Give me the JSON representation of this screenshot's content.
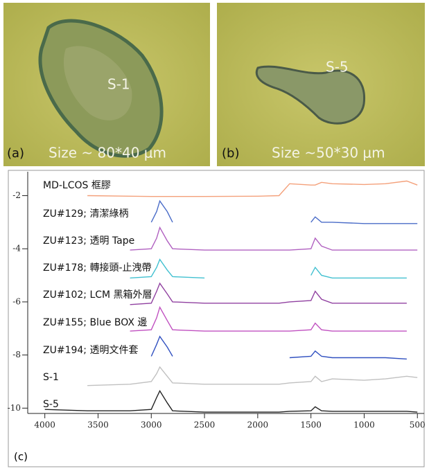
{
  "panels": {
    "a": {
      "tag": "(a)",
      "sample": "S-1",
      "size": "Size ~ 80*40 μm"
    },
    "b": {
      "tag": "(b)",
      "sample": "S-5",
      "size": "Size ~50*30 μm"
    },
    "c": {
      "tag": "(c)"
    }
  },
  "chart_data": {
    "type": "line",
    "x": [
      4000,
      3600,
      3200,
      3000,
      2950,
      2920,
      2850,
      2800,
      2500,
      2000,
      1800,
      1700,
      1500,
      1460,
      1400,
      1300,
      1000,
      800,
      600,
      500
    ],
    "xlim": [
      4050,
      430
    ],
    "xticks": [
      4000,
      3500,
      3000,
      2500,
      2000,
      1500,
      1000,
      500
    ],
    "ylim": [
      -10.2,
      -1.1
    ],
    "yticks": [
      -2,
      -4,
      -6,
      -8,
      -10
    ],
    "series": [
      {
        "name": "MD-LCOS 框膠",
        "color": "#f4a07a",
        "values": [
          null,
          -2.0,
          -2.02,
          -2.03,
          -2.03,
          -2.03,
          -2.03,
          -2.03,
          -2.03,
          -2.02,
          -2.0,
          -1.55,
          -1.6,
          -1.6,
          -1.5,
          -1.55,
          -1.58,
          -1.55,
          -1.45,
          -1.6
        ]
      },
      {
        "name": "ZU#129; 清潔綠柄",
        "color": "#4a6cc8",
        "values": [
          null,
          null,
          null,
          -3.0,
          -2.6,
          -2.2,
          -2.6,
          -3.0,
          null,
          null,
          null,
          null,
          -3.0,
          -2.8,
          -3.0,
          -3.0,
          -3.05,
          -3.05,
          -3.05,
          -3.05
        ]
      },
      {
        "name": "ZU#123; 透明 Tape",
        "color": "#b060c0",
        "values": [
          null,
          null,
          -4.05,
          -4.0,
          -3.6,
          -3.2,
          -3.7,
          -4.0,
          -4.05,
          -4.05,
          -4.05,
          -4.05,
          -4.0,
          -3.6,
          -3.9,
          -4.05,
          -4.05,
          -4.05,
          -4.05,
          -4.05
        ]
      },
      {
        "name": "ZU#178; 轉接頭-止洩帶",
        "color": "#40c0d0",
        "values": [
          null,
          null,
          -5.1,
          -5.05,
          -4.7,
          -4.4,
          -4.8,
          -5.05,
          -5.1,
          null,
          null,
          null,
          -5.0,
          -4.7,
          -5.0,
          -5.1,
          -5.1,
          -5.1,
          -5.1,
          null
        ]
      },
      {
        "name": "ZU#102; LCM 黑箱外層",
        "color": "#9040a0",
        "values": [
          null,
          null,
          -6.1,
          -6.05,
          -5.6,
          -5.3,
          -5.7,
          -6.0,
          -6.05,
          -6.05,
          -6.05,
          -6.0,
          -5.95,
          -5.6,
          -5.9,
          -6.05,
          -6.05,
          -6.05,
          -6.05,
          null
        ]
      },
      {
        "name": "ZU#155; Blue BOX 邊",
        "color": "#c050c0",
        "values": [
          null,
          null,
          -7.1,
          -7.05,
          -6.6,
          -6.2,
          -6.7,
          -7.05,
          -7.1,
          -7.1,
          -7.1,
          -7.1,
          -7.05,
          -6.8,
          -7.05,
          -7.1,
          -7.1,
          -7.1,
          -7.1,
          null
        ]
      },
      {
        "name": "ZU#194; 透明文件套",
        "color": "#3050c0",
        "values": [
          null,
          null,
          null,
          -8.05,
          -7.6,
          -7.3,
          -7.7,
          -8.05,
          null,
          null,
          null,
          -8.1,
          -8.05,
          -7.85,
          -8.05,
          -8.1,
          -8.1,
          -8.1,
          -8.15,
          null
        ]
      },
      {
        "name": "S-1",
        "color": "#c0c0c0",
        "values": [
          null,
          -9.15,
          -9.1,
          -9.0,
          -8.7,
          -8.45,
          -8.8,
          -9.05,
          -9.1,
          -9.1,
          -9.1,
          -9.05,
          -9.0,
          -8.8,
          -9.0,
          -8.9,
          -8.95,
          -8.9,
          -8.8,
          -8.85
        ]
      },
      {
        "name": "S-5",
        "color": "#222222",
        "values": [
          -10.05,
          -10.1,
          -10.1,
          -10.05,
          -9.6,
          -9.35,
          -9.8,
          -10.1,
          -10.15,
          -10.15,
          -10.15,
          -10.12,
          -10.1,
          -9.95,
          -10.1,
          -10.12,
          -10.12,
          -10.12,
          -10.12,
          -10.15
        ]
      }
    ]
  }
}
